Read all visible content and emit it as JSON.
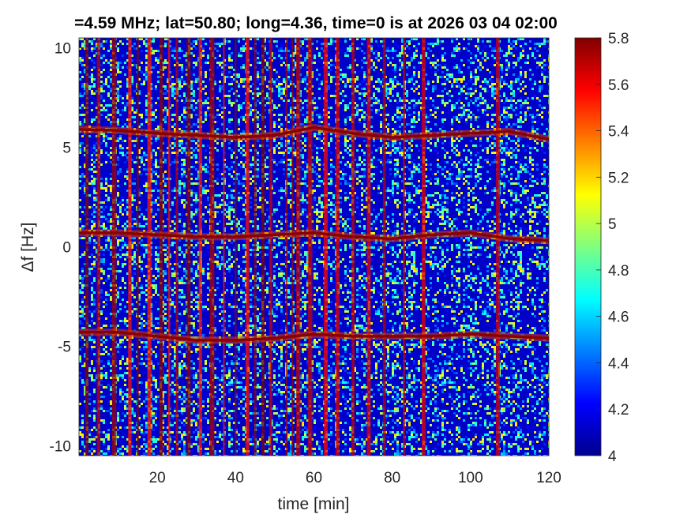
{
  "chart_data": {
    "type": "heatmap",
    "title": "=4.59 MHz;  lat=50.80; long=4.36, time=0 is at 2026 03 04 02:00",
    "xlabel": "time [min]",
    "ylabel": "Δf [Hz]",
    "xlim": [
      0,
      120
    ],
    "ylim": [
      -10.5,
      10.5
    ],
    "x_ticks": [
      20,
      40,
      60,
      80,
      100,
      120
    ],
    "y_ticks": [
      -10,
      -5,
      0,
      5,
      10
    ],
    "x_tick_labels": [
      "20",
      "40",
      "60",
      "80",
      "100",
      "120"
    ],
    "y_tick_labels": [
      "-10",
      "-5",
      "0",
      "5",
      "10"
    ],
    "colorbar": {
      "colormap": "jet",
      "range": [
        4,
        5.8
      ],
      "ticks": [
        4,
        4.2,
        4.4,
        4.6,
        4.8,
        5,
        5.2,
        5.4,
        5.6,
        5.8
      ],
      "tick_labels": [
        "4",
        "4.2",
        "4.4",
        "4.6",
        "4.8",
        "5",
        "5.2",
        "5.4",
        "5.6",
        "5.8"
      ]
    },
    "traces": [
      {
        "t": [
          0,
          10,
          20,
          30,
          40,
          50,
          60,
          70,
          80,
          90,
          100,
          110,
          120
        ],
        "df": [
          5.9,
          5.85,
          5.7,
          5.6,
          5.5,
          5.6,
          6.0,
          5.7,
          5.5,
          5.6,
          5.7,
          5.8,
          5.4
        ]
      },
      {
        "t": [
          0,
          10,
          20,
          30,
          40,
          50,
          60,
          70,
          80,
          90,
          100,
          110,
          120
        ],
        "df": [
          0.7,
          0.7,
          0.6,
          0.5,
          0.5,
          0.6,
          0.7,
          0.5,
          0.4,
          0.6,
          0.7,
          0.4,
          0.3
        ]
      },
      {
        "t": [
          0,
          10,
          20,
          30,
          40,
          50,
          60,
          70,
          80,
          90,
          100,
          110,
          120
        ],
        "df": [
          -4.3,
          -4.3,
          -4.5,
          -4.7,
          -4.7,
          -4.6,
          -4.4,
          -4.5,
          -4.5,
          -4.5,
          -4.4,
          -4.5,
          -4.6
        ]
      }
    ],
    "bright_columns_min": [
      2,
      5,
      9,
      13,
      15,
      18,
      21,
      23,
      25,
      28,
      31,
      34,
      37,
      40,
      43,
      45,
      47,
      49,
      53,
      54.5,
      56,
      59,
      63,
      66,
      70,
      74,
      78,
      83,
      88,
      107
    ]
  }
}
